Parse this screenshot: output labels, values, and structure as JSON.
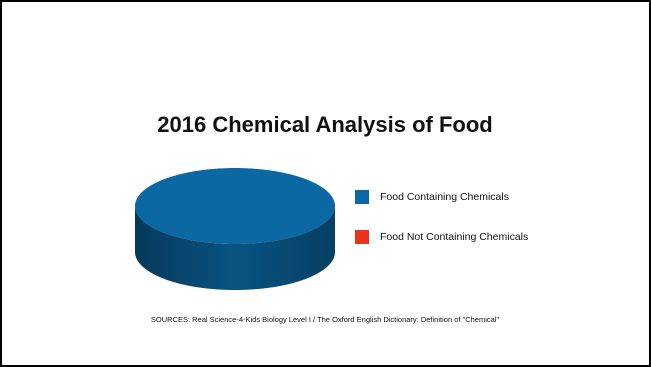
{
  "chart_data": {
    "type": "pie",
    "title": "2016 Chemical Analysis of Food",
    "categories": [
      "Food Containing Chemicals",
      "Food Not Containing Chemicals"
    ],
    "values": [
      100,
      0
    ],
    "colors": [
      "#0b68a3",
      "#e8341c"
    ],
    "legend": "right",
    "source": "SOURCES: Real Science-4-Kids Biology Level I / The Oxford English Dictionary: Definition of \"Chemical\""
  }
}
